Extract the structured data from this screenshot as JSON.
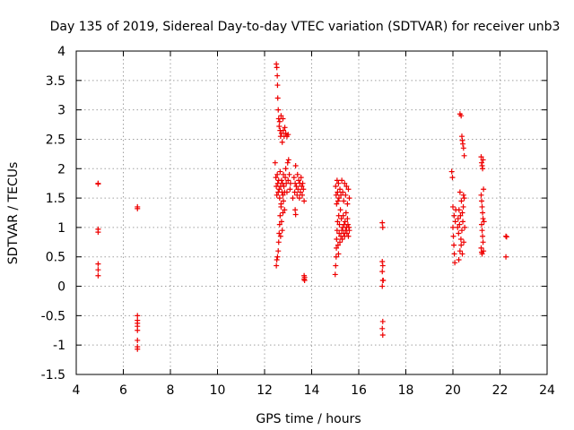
{
  "chart_data": {
    "type": "scatter",
    "title": "Day 135 of 2019, Sidereal Day-to-day VTEC variation (SDTVAR) for receiver unb3",
    "xlabel": "GPS time / hours",
    "ylabel": "SDTVAR / TECUs",
    "xlim": [
      4,
      24
    ],
    "ylim": [
      -1.5,
      4
    ],
    "xticks": [
      4,
      6,
      8,
      10,
      12,
      14,
      16,
      18,
      20,
      22,
      24
    ],
    "yticks": [
      -1.5,
      -1,
      -0.5,
      0,
      0.5,
      1,
      1.5,
      2,
      2.5,
      3,
      3.5,
      4
    ],
    "grid": true,
    "marker": "+",
    "series": [
      {
        "name": "SDTVAR",
        "color": "#ee0000",
        "points": [
          [
            4.93,
            1.75
          ],
          [
            4.93,
            1.74
          ],
          [
            4.93,
            0.97
          ],
          [
            4.93,
            0.92
          ],
          [
            4.93,
            0.38
          ],
          [
            4.93,
            0.28
          ],
          [
            4.93,
            0.18
          ],
          [
            6.6,
            1.35
          ],
          [
            6.6,
            1.32
          ],
          [
            6.6,
            -0.5
          ],
          [
            6.6,
            -0.58
          ],
          [
            6.6,
            -0.63
          ],
          [
            6.6,
            -0.68
          ],
          [
            6.6,
            -0.75
          ],
          [
            6.6,
            -0.92
          ],
          [
            6.6,
            -1.03
          ],
          [
            6.6,
            -1.07
          ],
          [
            12.5,
            3.78
          ],
          [
            12.52,
            3.72
          ],
          [
            12.54,
            3.58
          ],
          [
            12.55,
            3.42
          ],
          [
            12.56,
            3.2
          ],
          [
            12.58,
            3.0
          ],
          [
            12.6,
            2.85
          ],
          [
            12.62,
            2.72
          ],
          [
            12.64,
            2.8
          ],
          [
            12.66,
            2.65
          ],
          [
            12.68,
            2.55
          ],
          [
            12.7,
            2.9
          ],
          [
            12.72,
            2.6
          ],
          [
            12.75,
            2.45
          ],
          [
            12.78,
            2.85
          ],
          [
            12.8,
            2.65
          ],
          [
            12.83,
            2.55
          ],
          [
            12.86,
            2.7
          ],
          [
            12.9,
            2.6
          ],
          [
            12.95,
            2.55
          ],
          [
            13.0,
            2.58
          ],
          [
            12.45,
            2.1
          ],
          [
            12.48,
            1.85
          ],
          [
            12.5,
            1.7
          ],
          [
            12.52,
            1.55
          ],
          [
            12.54,
            1.9
          ],
          [
            12.56,
            1.75
          ],
          [
            12.58,
            1.6
          ],
          [
            12.6,
            1.8
          ],
          [
            12.62,
            1.65
          ],
          [
            12.64,
            1.5
          ],
          [
            12.66,
            1.95
          ],
          [
            12.68,
            1.7
          ],
          [
            12.7,
            1.4
          ],
          [
            12.72,
            1.8
          ],
          [
            12.74,
            1.6
          ],
          [
            12.76,
            1.75
          ],
          [
            12.78,
            1.55
          ],
          [
            12.8,
            1.9
          ],
          [
            12.82,
            1.7
          ],
          [
            12.85,
            1.6
          ],
          [
            12.88,
            1.85
          ],
          [
            12.9,
            2.0
          ],
          [
            12.92,
            1.75
          ],
          [
            12.95,
            1.6
          ],
          [
            12.98,
            2.1
          ],
          [
            13.0,
            1.8
          ],
          [
            13.02,
            2.15
          ],
          [
            13.05,
            1.9
          ],
          [
            13.08,
            1.65
          ],
          [
            13.1,
            1.75
          ],
          [
            12.5,
            0.35
          ],
          [
            12.52,
            0.45
          ],
          [
            12.55,
            0.5
          ],
          [
            12.58,
            0.6
          ],
          [
            12.6,
            0.75
          ],
          [
            12.62,
            0.9
          ],
          [
            12.64,
            1.05
          ],
          [
            12.66,
            1.2
          ],
          [
            12.68,
            0.85
          ],
          [
            12.7,
            1.35
          ],
          [
            12.72,
            1.1
          ],
          [
            12.75,
            0.95
          ],
          [
            12.78,
            1.25
          ],
          [
            12.8,
            1.45
          ],
          [
            12.85,
            1.3
          ],
          [
            13.2,
            1.5
          ],
          [
            13.25,
            1.85
          ],
          [
            13.28,
            1.6
          ],
          [
            13.3,
            1.75
          ],
          [
            13.32,
            2.05
          ],
          [
            13.35,
            1.7
          ],
          [
            13.38,
            1.55
          ],
          [
            13.4,
            1.9
          ],
          [
            13.42,
            1.65
          ],
          [
            13.45,
            1.8
          ],
          [
            13.48,
            1.5
          ],
          [
            13.5,
            1.75
          ],
          [
            13.52,
            1.6
          ],
          [
            13.55,
            1.85
          ],
          [
            13.58,
            1.7
          ],
          [
            13.6,
            1.55
          ],
          [
            13.62,
            1.75
          ],
          [
            13.65,
            1.65
          ],
          [
            13.68,
            1.45
          ],
          [
            13.3,
            1.3
          ],
          [
            13.32,
            1.22
          ],
          [
            13.68,
            0.18
          ],
          [
            13.7,
            0.15
          ],
          [
            13.68,
            0.12
          ],
          [
            13.7,
            0.1
          ],
          [
            15.0,
            0.2
          ],
          [
            15.02,
            0.35
          ],
          [
            15.04,
            0.5
          ],
          [
            15.05,
            0.65
          ],
          [
            15.06,
            0.8
          ],
          [
            15.08,
            0.95
          ],
          [
            15.1,
            1.1
          ],
          [
            15.12,
            0.7
          ],
          [
            15.14,
            0.55
          ],
          [
            15.15,
            1.2
          ],
          [
            15.17,
            0.9
          ],
          [
            15.18,
            1.05
          ],
          [
            15.2,
            0.75
          ],
          [
            15.22,
            1.3
          ],
          [
            15.24,
            0.85
          ],
          [
            15.26,
            1.15
          ],
          [
            15.28,
            0.95
          ],
          [
            15.3,
            0.8
          ],
          [
            15.32,
            1.0
          ],
          [
            15.34,
            1.2
          ],
          [
            15.36,
            0.9
          ],
          [
            15.38,
            1.05
          ],
          [
            15.4,
            0.85
          ],
          [
            15.42,
            1.1
          ],
          [
            15.44,
            0.95
          ],
          [
            15.46,
            1.25
          ],
          [
            15.48,
            1.0
          ],
          [
            15.5,
            0.9
          ],
          [
            15.52,
            1.15
          ],
          [
            15.54,
            1.05
          ],
          [
            15.56,
            0.85
          ],
          [
            15.58,
            1.0
          ],
          [
            15.6,
            0.95
          ],
          [
            15.02,
            1.7
          ],
          [
            15.04,
            1.55
          ],
          [
            15.06,
            1.4
          ],
          [
            15.08,
            1.8
          ],
          [
            15.1,
            1.6
          ],
          [
            15.12,
            1.45
          ],
          [
            15.14,
            1.75
          ],
          [
            15.16,
            1.5
          ],
          [
            15.2,
            1.65
          ],
          [
            15.24,
            1.55
          ],
          [
            15.28,
            1.8
          ],
          [
            15.32,
            1.6
          ],
          [
            15.36,
            1.45
          ],
          [
            15.4,
            1.75
          ],
          [
            15.44,
            1.55
          ],
          [
            15.48,
            1.7
          ],
          [
            15.52,
            1.4
          ],
          [
            15.56,
            1.65
          ],
          [
            15.6,
            1.5
          ],
          [
            17.0,
            1.08
          ],
          [
            17.02,
            1.0
          ],
          [
            17.0,
            0.42
          ],
          [
            17.02,
            0.35
          ],
          [
            17.0,
            0.25
          ],
          [
            17.02,
            0.1
          ],
          [
            17.04,
            0.1
          ],
          [
            17.0,
            0.0
          ],
          [
            17.02,
            -0.6
          ],
          [
            17.0,
            -0.72
          ],
          [
            17.02,
            -0.83
          ],
          [
            20.3,
            2.93
          ],
          [
            20.35,
            2.9
          ],
          [
            20.38,
            2.55
          ],
          [
            20.4,
            2.48
          ],
          [
            20.42,
            2.42
          ],
          [
            20.45,
            2.35
          ],
          [
            20.48,
            2.22
          ],
          [
            19.95,
            1.95
          ],
          [
            19.98,
            1.85
          ],
          [
            20.0,
            1.0
          ],
          [
            20.02,
            0.85
          ],
          [
            20.04,
            0.7
          ],
          [
            20.06,
            0.55
          ],
          [
            20.08,
            0.4
          ],
          [
            20.1,
            1.1
          ],
          [
            20.12,
            1.3
          ],
          [
            20.0,
            1.35
          ],
          [
            20.05,
            1.2
          ],
          [
            20.2,
            1.0
          ],
          [
            20.22,
            1.15
          ],
          [
            20.24,
            0.9
          ],
          [
            20.26,
            1.3
          ],
          [
            20.28,
            1.05
          ],
          [
            20.3,
            1.6
          ],
          [
            20.32,
            1.2
          ],
          [
            20.34,
            0.8
          ],
          [
            20.36,
            1.45
          ],
          [
            20.38,
            0.95
          ],
          [
            20.4,
            1.25
          ],
          [
            20.42,
            1.1
          ],
          [
            20.44,
            1.35
          ],
          [
            20.46,
            0.75
          ],
          [
            20.48,
            1.5
          ],
          [
            20.5,
            1.0
          ],
          [
            20.25,
            0.45
          ],
          [
            20.3,
            0.6
          ],
          [
            20.35,
            0.7
          ],
          [
            20.4,
            0.55
          ],
          [
            20.45,
            1.55
          ],
          [
            21.2,
            2.2
          ],
          [
            21.22,
            2.1
          ],
          [
            21.24,
            2.05
          ],
          [
            21.26,
            2.0
          ],
          [
            21.28,
            2.15
          ],
          [
            21.2,
            1.55
          ],
          [
            21.22,
            1.45
          ],
          [
            21.24,
            1.35
          ],
          [
            21.26,
            1.25
          ],
          [
            21.28,
            1.15
          ],
          [
            21.3,
            1.65
          ],
          [
            21.22,
            1.05
          ],
          [
            21.24,
            0.95
          ],
          [
            21.26,
            0.85
          ],
          [
            21.28,
            0.75
          ],
          [
            21.2,
            0.65
          ],
          [
            21.22,
            0.58
          ],
          [
            21.24,
            0.55
          ],
          [
            21.3,
            0.6
          ],
          [
            21.32,
            1.1
          ],
          [
            22.25,
            0.85
          ],
          [
            22.28,
            0.84
          ],
          [
            22.25,
            0.5
          ]
        ]
      }
    ]
  }
}
